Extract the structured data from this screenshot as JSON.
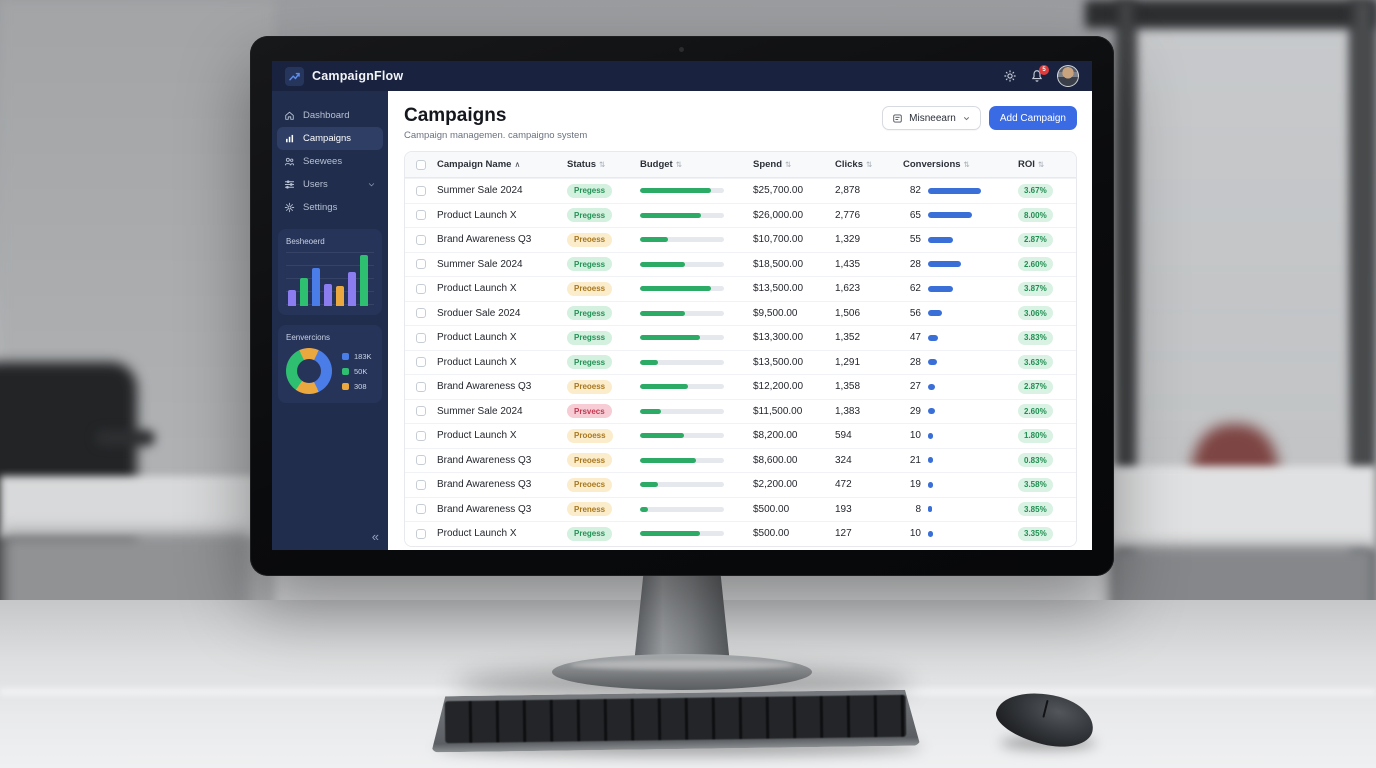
{
  "topbar": {
    "app_name": "CampaignFlow",
    "notification_count": "5"
  },
  "sidebar": {
    "items": [
      {
        "label": "Dashboard",
        "icon": "home",
        "active": false,
        "chevron": false
      },
      {
        "label": "Campaigns",
        "icon": "chart",
        "active": true,
        "chevron": false
      },
      {
        "label": "Seewees",
        "icon": "users",
        "active": false,
        "chevron": false
      },
      {
        "label": "Users",
        "icon": "sliders",
        "active": false,
        "chevron": true
      },
      {
        "label": "Settings",
        "icon": "gear",
        "active": false,
        "chevron": false
      }
    ],
    "bar_card": {
      "title": "Besheoerd",
      "chart": {
        "type": "bar",
        "values": [
          25,
          42,
          58,
          33,
          30,
          52,
          78
        ],
        "colors": [
          "#8b7cf0",
          "#2fbf71",
          "#4a7de8",
          "#8b7cf0",
          "#eba83f",
          "#8b7cf0",
          "#2fbf71"
        ]
      }
    },
    "donut_card": {
      "title": "Eenvercions",
      "chart": {
        "type": "pie",
        "segments": [
          {
            "color": "#eba83f",
            "start": 0,
            "end": 25
          },
          {
            "color": "#4a7de8",
            "start": 25,
            "end": 155
          },
          {
            "color": "#eba83f",
            "start": 155,
            "end": 215
          },
          {
            "color": "#2fbf71",
            "start": 215,
            "end": 335
          },
          {
            "color": "#eba83f",
            "start": 335,
            "end": 360
          }
        ]
      },
      "legend": [
        {
          "label": "183K",
          "color": "#4a7de8"
        },
        {
          "label": "50K",
          "color": "#2fbf71"
        },
        {
          "label": "308",
          "color": "#eba83f"
        }
      ]
    },
    "collapse_glyph": "«"
  },
  "page": {
    "title": "Campaigns",
    "subtitle": "Campaign managemen. campaigno system"
  },
  "toolbar": {
    "filter_label": "Misneearn",
    "add_label": "Add Campaign"
  },
  "table": {
    "columns": [
      {
        "label": "Campaign Name",
        "sort": "asc"
      },
      {
        "label": "Status",
        "sort": "both"
      },
      {
        "label": "Budget",
        "sort": "both"
      },
      {
        "label": "Spend",
        "sort": "both"
      },
      {
        "label": "Clicks",
        "sort": "both"
      },
      {
        "label": "Conversions",
        "sort": "both"
      },
      {
        "label": "ROI",
        "sort": "both"
      }
    ],
    "rows": [
      {
        "name": "Summer Sale 2024",
        "status": "Pregess",
        "status_type": "green",
        "budget_pct": 85,
        "spend": "$25,700.00",
        "clicks": "2,878",
        "conversions": "82",
        "conv_bar": 53,
        "roi": "3.67%"
      },
      {
        "name": "Product Launch X",
        "status": "Pregess",
        "status_type": "green",
        "budget_pct": 73,
        "spend": "$26,000.00",
        "clicks": "2,776",
        "conversions": "65",
        "conv_bar": 44,
        "roi": "8.00%"
      },
      {
        "name": "Brand Awareness Q3",
        "status": "Preoess",
        "status_type": "yellow",
        "budget_pct": 33,
        "spend": "$10,700.00",
        "clicks": "1,329",
        "conversions": "55",
        "conv_bar": 25,
        "roi": "2.87%"
      },
      {
        "name": "Summer Sale 2024",
        "status": "Pregess",
        "status_type": "green",
        "budget_pct": 53,
        "spend": "$18,500.00",
        "clicks": "1,435",
        "conversions": "28",
        "conv_bar": 33,
        "roi": "2.60%"
      },
      {
        "name": "Product Launch X",
        "status": "Preoess",
        "status_type": "yellow",
        "budget_pct": 85,
        "spend": "$13,500.00",
        "clicks": "1,623",
        "conversions": "62",
        "conv_bar": 25,
        "roi": "3.87%"
      },
      {
        "name": "Sroduer Sale 2024",
        "status": "Pregess",
        "status_type": "green",
        "budget_pct": 53,
        "spend": "$9,500.00",
        "clicks": "1,506",
        "conversions": "56",
        "conv_bar": 14,
        "roi": "3.06%"
      },
      {
        "name": "Product Launch X",
        "status": "Pregsss",
        "status_type": "green",
        "budget_pct": 72,
        "spend": "$13,300.00",
        "clicks": "1,352",
        "conversions": "47",
        "conv_bar": 10,
        "roi": "3.83%"
      },
      {
        "name": "Product Launch X",
        "status": "Pregess",
        "status_type": "green",
        "budget_pct": 22,
        "spend": "$13,500.00",
        "clicks": "1,291",
        "conversions": "28",
        "conv_bar": 9,
        "roi": "3.63%"
      },
      {
        "name": "Brand Awareness Q3",
        "status": "Preoess",
        "status_type": "yellow",
        "budget_pct": 57,
        "spend": "$12,200.00",
        "clicks": "1,358",
        "conversions": "27",
        "conv_bar": 7,
        "roi": "2.87%"
      },
      {
        "name": "Summer Sale 2024",
        "status": "Prsvecs",
        "status_type": "red",
        "budget_pct": 25,
        "spend": "$11,500.00",
        "clicks": "1,383",
        "conversions": "29",
        "conv_bar": 7,
        "roi": "2.60%"
      },
      {
        "name": "Product Launch X",
        "status": "Prooess",
        "status_type": "yellow",
        "budget_pct": 52,
        "spend": "$8,200.00",
        "clicks": "594",
        "conversions": "10",
        "conv_bar": 5,
        "roi": "1.80%"
      },
      {
        "name": "Brand Awareness Q3",
        "status": "Preoess",
        "status_type": "yellow",
        "budget_pct": 67,
        "spend": "$8,600.00",
        "clicks": "324",
        "conversions": "21",
        "conv_bar": 5,
        "roi": "0.83%"
      },
      {
        "name": "Brand Awareness Q3",
        "status": "Preoecs",
        "status_type": "yellow",
        "budget_pct": 22,
        "spend": "$2,200.00",
        "clicks": "472",
        "conversions": "19",
        "conv_bar": 5,
        "roi": "3.58%"
      },
      {
        "name": "Brand Awareness Q3",
        "status": "Preness",
        "status_type": "yellow",
        "budget_pct": 10,
        "spend": "$500.00",
        "clicks": "193",
        "conversions": "8",
        "conv_bar": 4,
        "roi": "3.85%"
      },
      {
        "name": "Product Launch X",
        "status": "Pregess",
        "status_type": "green",
        "budget_pct": 72,
        "spend": "$500.00",
        "clicks": "127",
        "conversions": "10",
        "conv_bar": 5,
        "roi": "3.35%"
      }
    ]
  },
  "colors": {
    "accent_blue": "#3b6be4",
    "progress_green": "#2cab66",
    "conversions_blue": "#3a6fd8",
    "topbar_navy": "#19233f",
    "sidebar_navy": "#202d4d"
  }
}
